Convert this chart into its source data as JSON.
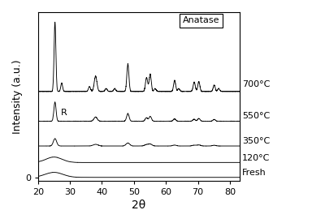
{
  "xlabel": "2θ",
  "ylabel": "Intensity (a.u.)",
  "xlim": [
    20,
    83
  ],
  "xticks": [
    20,
    30,
    40,
    50,
    60,
    70,
    80
  ],
  "labels": [
    "Fresh",
    "120°C",
    "350°C",
    "550°C",
    "700°C"
  ],
  "offsets": [
    0.0,
    0.09,
    0.19,
    0.34,
    0.52
  ],
  "scales": [
    0.055,
    0.055,
    0.1,
    0.155,
    0.42
  ],
  "anatase_label": "Anatase",
  "rutile_label": "R",
  "background_color": "#ffffff",
  "line_color": "#000000",
  "label_fontsize": 8,
  "axis_label_fontsize": 10,
  "anatase_peaks": [
    25.3,
    38.0,
    48.1,
    53.9,
    55.1,
    62.7,
    68.8,
    70.3,
    75.1
  ],
  "anatase_heights": [
    1.0,
    0.22,
    0.4,
    0.18,
    0.25,
    0.12,
    0.1,
    0.14,
    0.09
  ],
  "anatase_widths": [
    0.28,
    0.42,
    0.32,
    0.32,
    0.32,
    0.32,
    0.32,
    0.32,
    0.32
  ],
  "rutile_peaks": [
    27.4,
    36.1,
    41.3,
    44.0,
    54.3,
    56.6,
    62.8,
    64.0,
    69.0,
    76.5
  ],
  "rutile_heights": [
    0.12,
    0.07,
    0.04,
    0.04,
    0.04,
    0.04,
    0.04,
    0.04,
    0.04,
    0.04
  ],
  "rutile_widths": [
    0.28,
    0.32,
    0.32,
    0.32,
    0.32,
    0.32,
    0.32,
    0.32,
    0.32,
    0.32
  ]
}
